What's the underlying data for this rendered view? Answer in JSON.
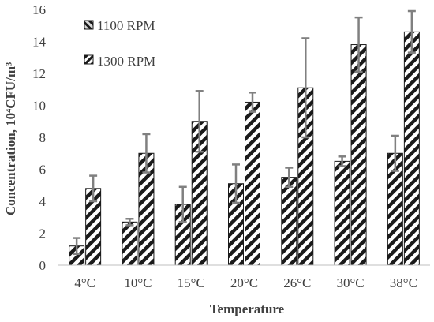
{
  "chart_data": {
    "type": "bar",
    "title": "",
    "xlabel": "Temperature",
    "ylabel": "Concentration, 10⁴CFU/m³",
    "categories": [
      "4°C",
      "10°C",
      "15°C",
      "20°C",
      "26°C",
      "30°C",
      "38°C"
    ],
    "ylim": [
      0,
      16
    ],
    "yticks": [
      "0",
      "2",
      "4",
      "6",
      "8",
      "10",
      "12",
      "14",
      "16"
    ],
    "grid": false,
    "legend_position": "top-left",
    "series": [
      {
        "name": "1100 RPM",
        "pattern": "dark-diagonal-stripes",
        "values": [
          1.2,
          2.7,
          3.8,
          5.1,
          5.5,
          6.5,
          7.0
        ],
        "error": [
          0.5,
          0.2,
          1.1,
          1.2,
          0.6,
          0.3,
          1.1
        ]
      },
      {
        "name": "1300 RPM",
        "pattern": "dark-diagonal-stripes",
        "values": [
          4.8,
          7.0,
          9.0,
          10.2,
          11.1,
          13.8,
          14.6
        ],
        "error": [
          0.8,
          1.2,
          1.9,
          0.6,
          3.1,
          1.7,
          1.3
        ]
      }
    ],
    "colors": {
      "bar_stroke": "#1a1a1a",
      "stripe": "#1a1a1a",
      "error_bar": "#808080",
      "axis": "#bfbfbf",
      "text": "#404040"
    }
  }
}
